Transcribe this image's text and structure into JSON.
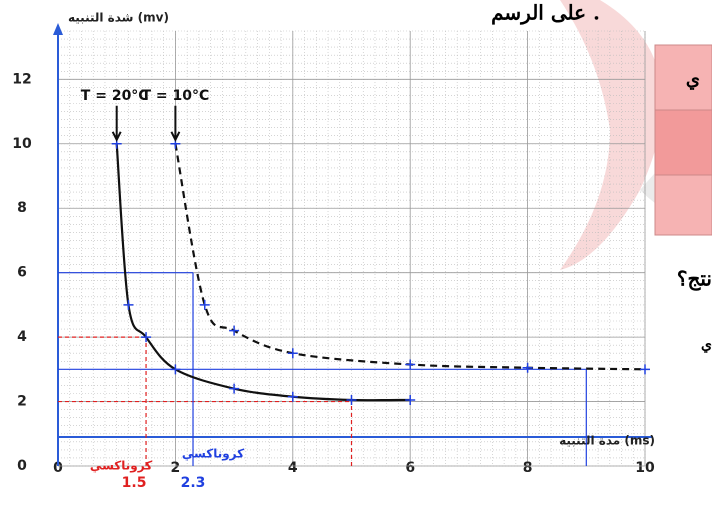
{
  "chart_data": {
    "type": "line",
    "y_label": "شدة التنبيه (mv)",
    "x_label": "مدة التنبيه (ms)",
    "xlim": [
      0,
      10
    ],
    "ylim": [
      0,
      13.5
    ],
    "xticks": [
      0,
      2,
      4,
      6,
      8,
      10
    ],
    "yticks": [
      0,
      2,
      4,
      6,
      8,
      10,
      12
    ],
    "grid": true,
    "series": [
      {
        "name": "T = 20°C",
        "color": "#111111",
        "dashed": false,
        "x": [
          1,
          1.2,
          1.5,
          2,
          3,
          4,
          5,
          6
        ],
        "values": [
          10,
          5,
          4,
          3,
          2.4,
          2.15,
          2.05,
          2.05
        ]
      },
      {
        "name": "T = 10°C",
        "color": "#111111",
        "dashed": true,
        "x": [
          2,
          2.5,
          3,
          4,
          6,
          8,
          10
        ],
        "values": [
          10,
          5,
          4.2,
          3.5,
          3.15,
          3.05,
          3
        ]
      }
    ],
    "reference_lines": [
      {
        "x": 1.5,
        "y": 4,
        "color": "#e02020"
      },
      {
        "x": 5,
        "y": 2,
        "color": "#e02020"
      },
      {
        "x": 2.3,
        "y": 6,
        "color": "#2040e0"
      },
      {
        "x": 9,
        "y": 3,
        "color": "#2040e0"
      }
    ],
    "annotations": [
      {
        "text": "كروناكسي",
        "value": "1.5",
        "color": "#e02020"
      },
      {
        "text": "كروناكسي",
        "value": "2.3",
        "color": "#2040e0"
      }
    ]
  },
  "page_fragments": {
    "top_text": "على الرسم .",
    "table_text": "ي",
    "question": "نتج؟",
    "side_text": "ي"
  }
}
